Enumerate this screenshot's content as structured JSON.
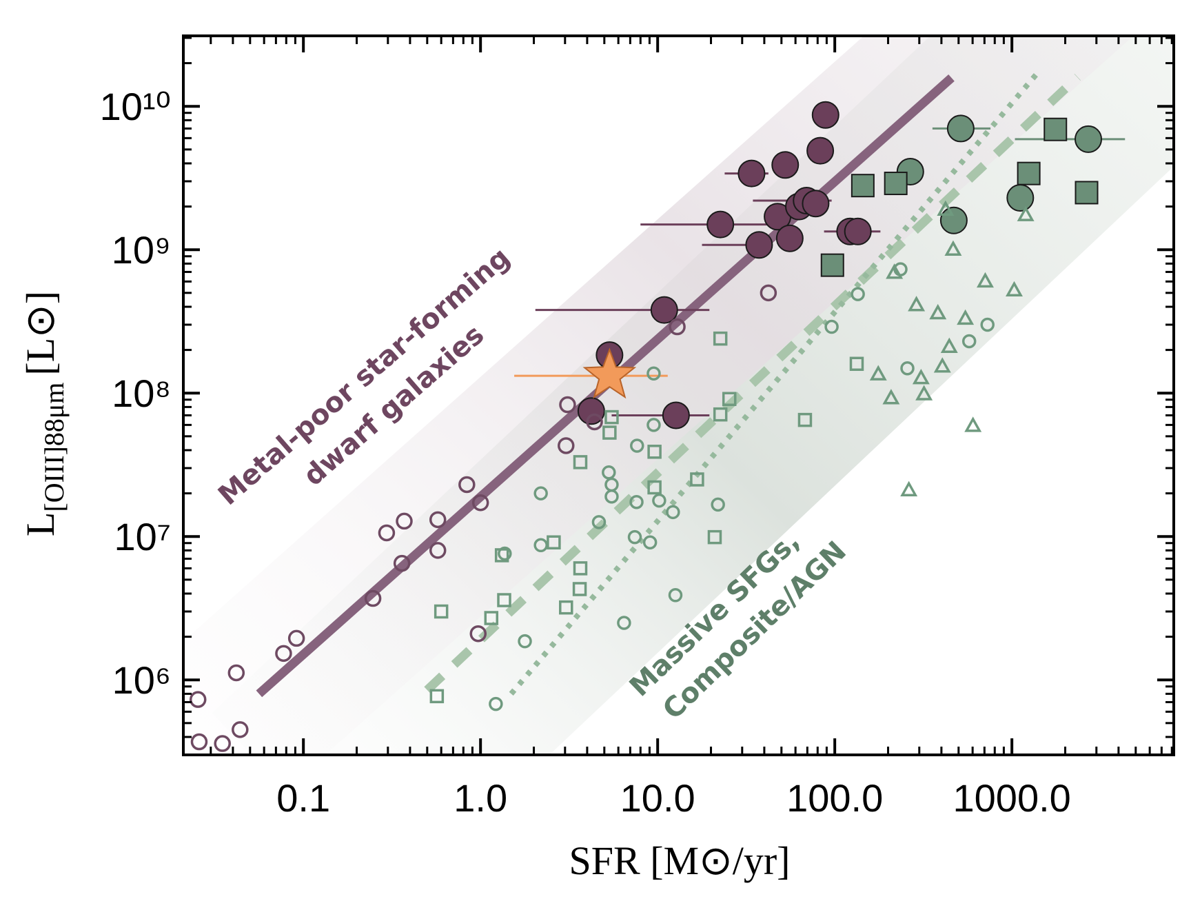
{
  "chart_data": {
    "type": "scatter",
    "x_label": "SFR [M⊙/yr]",
    "y_label": "L",
    "y_label_sub": "[OIII]88μm",
    "y_label_unit": "[L⊙]",
    "log_x": true,
    "log_y": true,
    "xlim": [
      0.021,
      8200
    ],
    "ylim": [
      300000,
      31000000000
    ],
    "xticks": [
      0.1,
      {
        "value": 1,
        "label": "1.0"
      },
      {
        "value": 10,
        "label": "10.0"
      },
      {
        "value": 100,
        "label": "100.0"
      },
      {
        "value": 1000,
        "label": "1000.0"
      }
    ],
    "yticks": [
      {
        "value": 1000000,
        "label": "10⁶"
      },
      {
        "value": 10000000,
        "label": "10⁷"
      },
      {
        "value": 100000000,
        "label": "10⁸"
      },
      {
        "value": 1000000000,
        "label": "10⁹"
      },
      {
        "value": 10000000000,
        "label": "10¹⁰"
      }
    ],
    "annotations": [
      {
        "text": "Metal-poor star-forming",
        "color": "#6e4660"
      },
      {
        "text": "dwarf galaxies",
        "color": "#6e4660"
      },
      {
        "text": "Massive SFGs,",
        "color": "#5e7f69"
      },
      {
        "text": "Composite/AGN",
        "color": "#5e7f69"
      }
    ],
    "lines": [
      {
        "style": "solid",
        "color": "#86637d",
        "x": [
          0.0562,
          456
        ],
        "y": [
          800000,
          15800000000
        ]
      },
      {
        "style": "dashed",
        "color": "#a9c5ab",
        "x": [
          0.5,
          2350
        ],
        "y": [
          850000,
          16000000000
        ]
      },
      {
        "style": "dotted",
        "color": "#96b99d",
        "x": [
          1.49,
          1390
        ],
        "y": [
          800000,
          17000000000
        ]
      }
    ],
    "series": [
      {
        "marker": "large-circle",
        "filled": true,
        "color": "#6b3f5a",
        "x": [
          88.7,
          82.8,
          33.9,
          52.5,
          22.6,
          47.5,
          55.7,
          37.4,
          62.7,
          69.3,
          78,
          122,
          135,
          10.9,
          5.35,
          4.22,
          12.7
        ],
        "values": [
          8700000000,
          4900000000,
          3400000000,
          3900000000,
          1500000000,
          1700000000,
          1200000000,
          1080000000,
          2000000000,
          2200000000,
          2100000000,
          1340000000,
          1340000000,
          380000000,
          184000000,
          75000000,
          70000000
        ],
        "xerr": [
          null,
          null,
          [
            23.9,
            42.2
          ],
          null,
          [
            8.0,
            44.7
          ],
          null,
          null,
          [
            17.8,
            40
          ],
          null,
          [
            34.5,
            96
          ],
          null,
          [
            87,
            181
          ],
          null,
          [
            2.04,
            19.6
          ],
          null,
          null,
          [
            5.5,
            19.6
          ]
        ]
      },
      {
        "marker": "circle",
        "filled": false,
        "color": "#6e4a62",
        "x": [
          0.0254,
          0.0258,
          0.0349,
          0.0439,
          0.0418,
          0.0773,
          0.0914,
          0.247,
          0.295,
          0.371,
          0.36,
          0.574,
          0.574,
          0.837,
          1.0,
          0.97,
          3.04,
          3.1,
          4.4,
          42.2,
          12.9
        ],
        "values": [
          730000,
          370000,
          360000,
          450000,
          1120000,
          1530000,
          1950000,
          3700000,
          10600000,
          12800000,
          6500000,
          13100000,
          8000000,
          23000000,
          17200000,
          2100000,
          43000000,
          83000000,
          63000000,
          500000000,
          290000000
        ]
      },
      {
        "marker": "large-circle",
        "filled": true,
        "color": "#6b8f78",
        "x": [
          514,
          267,
          2700,
          1115,
          470
        ],
        "values": [
          7000000000,
          3500000000,
          5900000000,
          2300000000,
          1600000000
        ],
        "xerr": [
          [
            356,
            757
          ],
          null,
          [
            1040,
            4350
          ],
          null,
          null
        ]
      },
      {
        "marker": "large-square",
        "filled": true,
        "color": "#6b8f78",
        "x": [
          1760,
          1245,
          144,
          221,
          2640,
          97
        ],
        "values": [
          6900000000,
          3400000000,
          2800000000,
          2900000000,
          2500000000,
          780000000
        ]
      },
      {
        "marker": "square",
        "filled": false,
        "color": "#6f9a7f",
        "x": [
          0.567,
          0.6,
          1.15,
          1.36,
          1.32,
          2.59,
          3.04,
          3.63,
          3.66,
          3.66,
          5.5,
          5.35,
          9.6,
          9.6,
          16.7,
          21,
          22.6,
          22.6,
          25.4,
          67.9,
          133
        ],
        "values": [
          770000,
          3000000,
          2700000,
          3600000,
          7400000,
          9100000,
          3200000,
          4300000,
          6000000,
          33000000,
          68000000,
          53000000,
          39000000,
          22000000,
          25000000,
          9900000,
          240000000,
          71000000,
          91000000,
          65000000,
          160000000
        ]
      },
      {
        "marker": "small-circle",
        "filled": false,
        "color": "#6f9a7f",
        "x": [
          1.22,
          1.78,
          2.19,
          2.19,
          1.37,
          4.66,
          5.3,
          5.5,
          5.5,
          6.46,
          7.43,
          7.65,
          7.6,
          9.06,
          9.5,
          9.5,
          10.2,
          12.2,
          12.6,
          21.9,
          96,
          135,
          235,
          257,
          574,
          728
        ],
        "values": [
          680000,
          1860000,
          20000000,
          8700000,
          7600000,
          12600000,
          28000000,
          19000000,
          23000000,
          2500000,
          9900000,
          43000000,
          17400000,
          9100000,
          137000000,
          60000000,
          17800000,
          14800000,
          3900000,
          16700000,
          290000000,
          490000000,
          730000000,
          149000000,
          230000000,
          300000000
        ]
      },
      {
        "marker": "triangle",
        "filled": false,
        "color": "#6f9a7f",
        "x": [
          217,
          466,
          422,
          1196,
          707,
          1030,
          289,
          382,
          546,
          443,
          405,
          176,
          307,
          319,
          208,
          603,
          262
        ],
        "values": [
          690000000,
          1000000000,
          1900000000,
          1740000000,
          600000000,
          520000000,
          410000000,
          360000000,
          330000000,
          210000000,
          153000000,
          135000000,
          127000000,
          98000000,
          92000000,
          59000000,
          21000000
        ]
      },
      {
        "marker": "star",
        "filled": true,
        "color": "#f29a5a",
        "x": [
          5.35
        ],
        "values": [
          132000000
        ],
        "xerr": [
          [
            1.55,
            11.4
          ]
        ]
      }
    ]
  }
}
